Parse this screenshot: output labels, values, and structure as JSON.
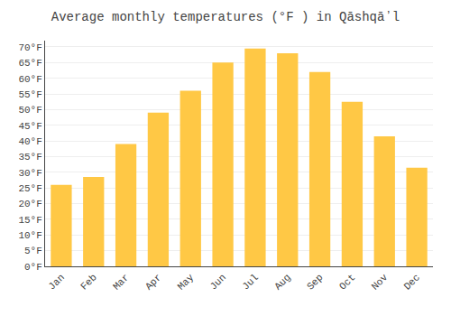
{
  "chart_data": {
    "type": "bar",
    "title": "Average monthly temperatures (°F ) in Qāshqāʼl",
    "categories": [
      "Jan",
      "Feb",
      "Mar",
      "Apr",
      "May",
      "Jun",
      "Jul",
      "Aug",
      "Sep",
      "Oct",
      "Nov",
      "Dec"
    ],
    "values": [
      26,
      28.5,
      39,
      49,
      56,
      65,
      69.5,
      68,
      62,
      52.5,
      41.5,
      31.5
    ],
    "color": "#FFC845",
    "ylim": [
      0,
      72
    ],
    "yticks": [
      {
        "value": 0,
        "label": "0°F"
      },
      {
        "value": 5,
        "label": "5°F"
      },
      {
        "value": 10,
        "label": "10°F"
      },
      {
        "value": 15,
        "label": "15°F"
      },
      {
        "value": 20,
        "label": "20°F"
      },
      {
        "value": 25,
        "label": "25°F"
      },
      {
        "value": 30,
        "label": "30°F"
      },
      {
        "value": 35,
        "label": "35°F"
      },
      {
        "value": 40,
        "label": "40°F"
      },
      {
        "value": 45,
        "label": "45°F"
      },
      {
        "value": 50,
        "label": "50°F"
      },
      {
        "value": 55,
        "label": "55°F"
      },
      {
        "value": 60,
        "label": "60°F"
      },
      {
        "value": 65,
        "label": "65°F"
      },
      {
        "value": 70,
        "label": "70°F"
      }
    ],
    "grid": true
  }
}
